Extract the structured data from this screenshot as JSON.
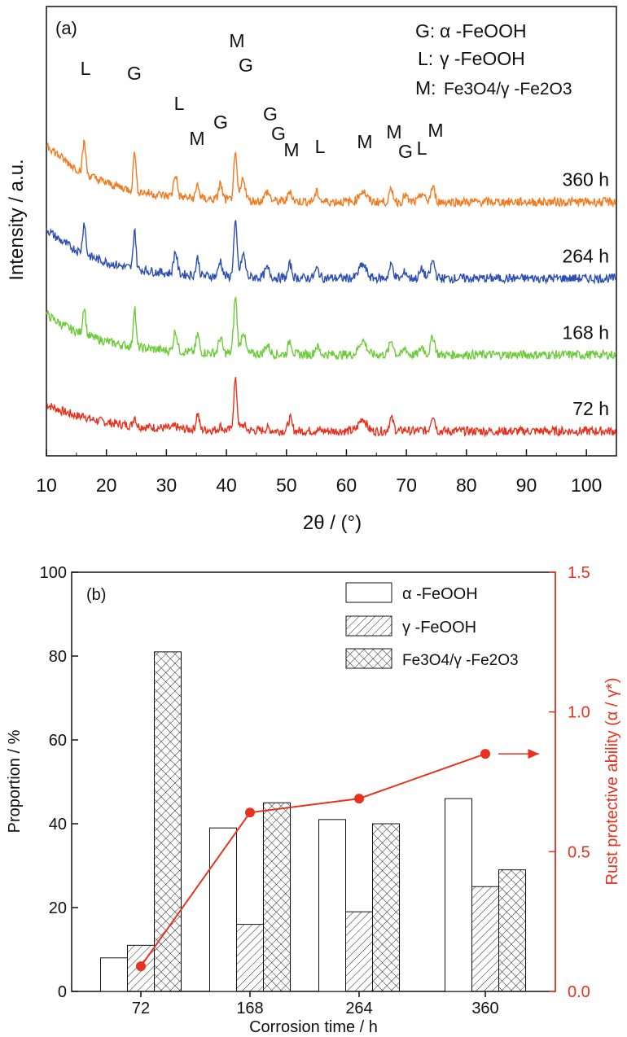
{
  "chart_data": [
    {
      "type": "line",
      "panel_label": "(a)",
      "xlabel": "2θ / (°)",
      "ylabel": "Intensity / a.u.",
      "xlim": [
        10,
        105
      ],
      "xticks": [
        10,
        20,
        30,
        40,
        50,
        60,
        70,
        80,
        90,
        100
      ],
      "legend": [
        {
          "key": "G:",
          "label": "α -FeOOH"
        },
        {
          "key": "L:",
          "label": "γ -FeOOH"
        },
        {
          "key": "M:",
          "label": "Fe3O4/γ -Fe2O3"
        }
      ],
      "series": [
        {
          "name": "72 h",
          "color": "#e8321e",
          "baseline": 0.06,
          "offset": 0.0
        },
        {
          "name": "168 h",
          "color": "#6ccc3a",
          "baseline": 0.09,
          "offset": 0.17
        },
        {
          "name": "264 h",
          "color": "#2d4fb3",
          "baseline": 0.11,
          "offset": 0.34
        },
        {
          "name": "360 h",
          "color": "#f47a20",
          "baseline": 0.13,
          "offset": 0.51
        }
      ],
      "peaks": [
        {
          "label": "L",
          "x": 16.3
        },
        {
          "label": "G",
          "x": 24.7
        },
        {
          "label": "L",
          "x": 31.5
        },
        {
          "label": "M",
          "x": 35.2
        },
        {
          "label": "G",
          "x": 39.0
        },
        {
          "label": "M",
          "x": 41.5
        },
        {
          "label": "G",
          "x": 42.8
        },
        {
          "label": "G",
          "x": 46.8
        },
        {
          "label": "G",
          "x": 48.5
        },
        {
          "label": "M",
          "x": 50.6
        },
        {
          "label": "L",
          "x": 55.1
        },
        {
          "label": "M",
          "x": 62.7
        },
        {
          "label": "M",
          "x": 67.5
        },
        {
          "label": "G",
          "x": 69.8
        },
        {
          "label": "L",
          "x": 72.6
        },
        {
          "label": "M",
          "x": 74.4
        }
      ]
    },
    {
      "type": "bar",
      "panel_label": "(b)",
      "categories": [
        "72",
        "168",
        "264",
        "360"
      ],
      "xlabel": "Corrosion time / h",
      "ylabel": "Proportion / %",
      "ylim": [
        0,
        100
      ],
      "yticks": [
        0,
        20,
        40,
        60,
        80,
        100
      ],
      "series": [
        {
          "name": "α -FeOOH",
          "values": [
            8,
            39,
            41,
            46
          ],
          "pattern": "none"
        },
        {
          "name": "γ -FeOOH",
          "values": [
            11,
            16,
            19,
            25
          ],
          "pattern": "diagonal"
        },
        {
          "name": "Fe3O4/γ -Fe2O3",
          "values": [
            81,
            45,
            40,
            29
          ],
          "pattern": "crosshatch"
        }
      ],
      "secondary_axis": {
        "label": "Rust protective ability (α / γ*)",
        "ylim": [
          0,
          1.5
        ],
        "yticks": [
          "0.0",
          "0.5",
          "1.0",
          "1.5"
        ],
        "color": "#e8321e",
        "values": [
          0.09,
          0.64,
          0.69,
          0.85
        ]
      }
    }
  ]
}
